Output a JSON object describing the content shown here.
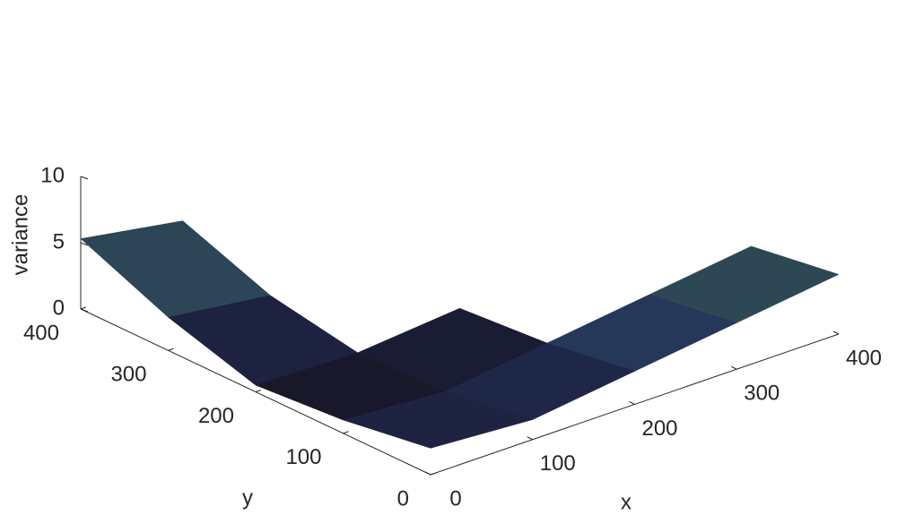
{
  "chart_data": {
    "type": "surface",
    "xlabel": "x",
    "ylabel": "y",
    "zlabel": "variance",
    "x": [
      0,
      100,
      200,
      300,
      400
    ],
    "y": [
      0,
      100,
      200,
      300,
      400
    ],
    "z": [
      [
        2,
        1.5,
        2.5,
        3.5,
        4.5
      ],
      [
        1,
        0.5,
        1.5,
        2.5,
        3.5
      ],
      [
        0.5,
        0.3,
        1,
        null,
        null
      ],
      [
        2.5,
        1.5,
        null,
        null,
        null
      ],
      [
        5.3,
        4,
        null,
        null,
        null
      ]
    ],
    "xlim": [
      0,
      400
    ],
    "ylim": [
      0,
      400
    ],
    "zlim": [
      0,
      10
    ],
    "xticks": [
      0,
      100,
      200,
      300,
      400
    ],
    "yticks": [
      0,
      100,
      200,
      300,
      400
    ],
    "zticks": [
      0,
      5,
      10
    ]
  }
}
